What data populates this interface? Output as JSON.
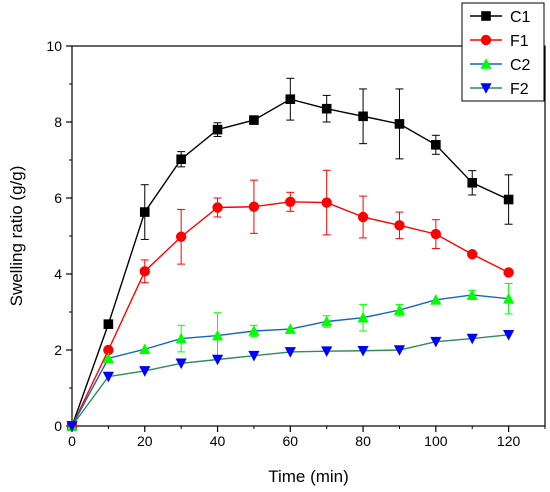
{
  "chart_data": {
    "type": "line",
    "xlabel": "Time (min)",
    "ylabel": "Swelling ratio (g/g)",
    "xlim": [
      0,
      130
    ],
    "ylim": [
      0,
      10
    ],
    "x_ticks": [
      0,
      20,
      40,
      60,
      80,
      100,
      120
    ],
    "y_ticks": [
      0,
      2,
      4,
      6,
      8,
      10
    ],
    "x": [
      0,
      10,
      20,
      30,
      40,
      50,
      60,
      70,
      80,
      90,
      100,
      110,
      120
    ],
    "grid": false,
    "legend_position": "top-right",
    "series": [
      {
        "name": "C1",
        "color": "#000000",
        "marker": "square",
        "values": [
          0,
          2.68,
          5.63,
          7.02,
          7.8,
          8.05,
          8.6,
          8.35,
          8.15,
          7.95,
          7.4,
          6.4,
          5.96
        ],
        "errors": [
          0,
          0,
          0.72,
          0.2,
          0.18,
          0,
          0.55,
          0.35,
          0.72,
          0.92,
          0.25,
          0.32,
          0.65
        ]
      },
      {
        "name": "F1",
        "color": "#ff0000",
        "marker": "circle",
        "values": [
          0,
          2.0,
          4.07,
          4.98,
          5.75,
          5.77,
          5.9,
          5.88,
          5.5,
          5.28,
          5.05,
          4.52,
          4.04
        ],
        "errors": [
          0,
          0,
          0.3,
          0.72,
          0.25,
          0.7,
          0.25,
          0.85,
          0.55,
          0.35,
          0.38,
          0,
          0
        ]
      },
      {
        "name": "C2",
        "color": "#00ff00",
        "marker": "triangle-up",
        "values": [
          0,
          1.78,
          2.02,
          2.3,
          2.38,
          2.5,
          2.55,
          2.75,
          2.85,
          3.05,
          3.32,
          3.45,
          3.35
        ],
        "errors": [
          0,
          0,
          0,
          0.35,
          0.6,
          0.15,
          0,
          0.15,
          0.35,
          0.15,
          0,
          0.12,
          0.4
        ]
      },
      {
        "name": "F2",
        "color": "#0000ff",
        "marker": "triangle-down",
        "values": [
          0,
          1.3,
          1.45,
          1.65,
          1.75,
          1.85,
          1.95,
          1.97,
          1.98,
          2.0,
          2.22,
          2.3,
          2.4
        ],
        "errors": [
          0,
          0,
          0,
          0,
          0,
          0,
          0,
          0,
          0,
          0,
          0,
          0,
          0
        ]
      }
    ],
    "line_colors": {
      "C1": "#000000",
      "F1": "#ff0000",
      "C2": "#1565c0",
      "F2": "#2e8b57"
    }
  }
}
